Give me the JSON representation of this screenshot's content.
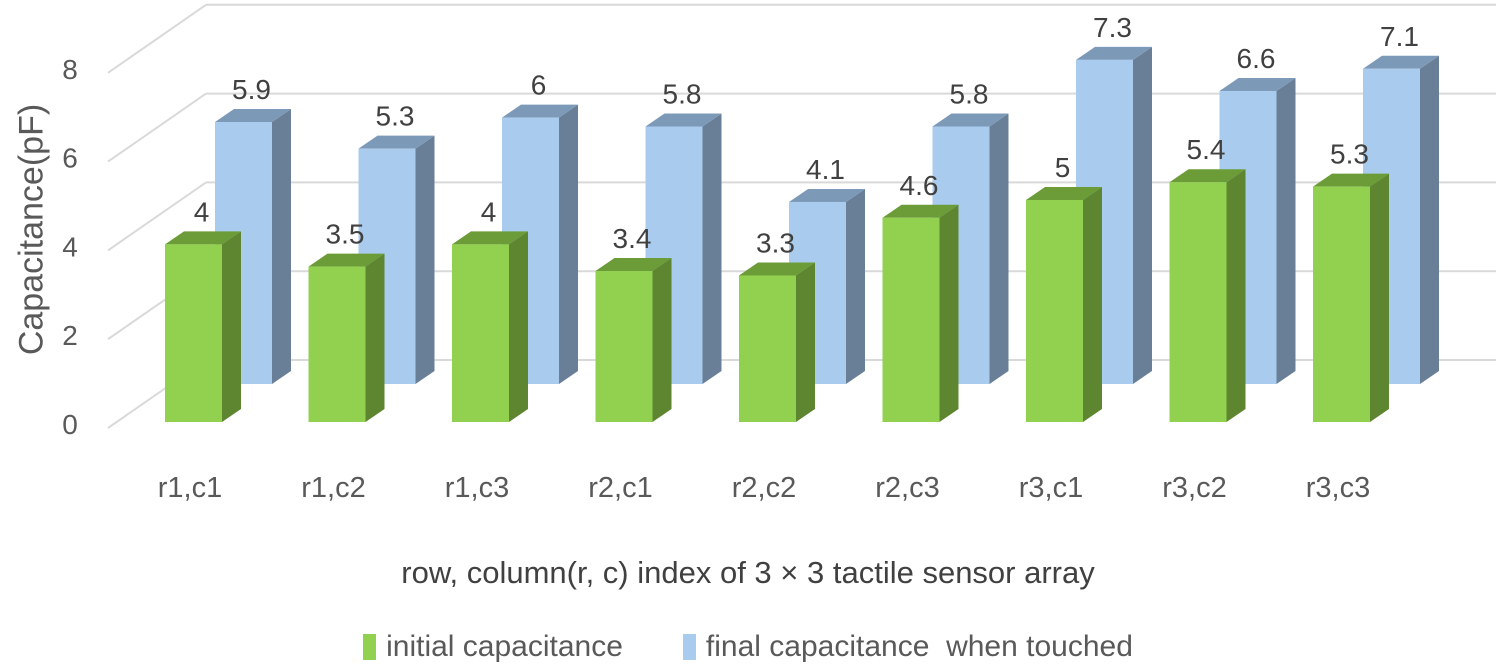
{
  "chart_data": {
    "type": "bar",
    "style": "3d-clustered-depth",
    "title": "",
    "xlabel": "row, column(r, c) index  of 3 × 3 tactile sensor array",
    "ylabel": "Capacitance(pF)",
    "ylim": [
      0,
      8
    ],
    "yticks": [
      0,
      2,
      4,
      6,
      8
    ],
    "grid": true,
    "legend_position": "bottom",
    "categories": [
      "r1,c1",
      "r1,c2",
      "r1,c3",
      "r2,c1",
      "r2,c2",
      "r2,c3",
      "r3,c1",
      "r3,c2",
      "r3,c3"
    ],
    "series": [
      {
        "name": "initial capacitance",
        "color": "#92d050",
        "values": [
          4,
          3.5,
          4,
          3.4,
          3.3,
          4.6,
          5,
          5.4,
          5.3
        ]
      },
      {
        "name": "final capacitance  when touched",
        "color": "#a9cbed",
        "values": [
          5.9,
          5.3,
          6,
          5.8,
          4.1,
          5.8,
          7.3,
          6.6,
          7.1
        ]
      }
    ]
  },
  "legend": {
    "items": [
      {
        "label": "initial capacitance",
        "color": "#92d050"
      },
      {
        "label": "final capacitance  when touched",
        "color": "#a9cbed"
      }
    ]
  }
}
